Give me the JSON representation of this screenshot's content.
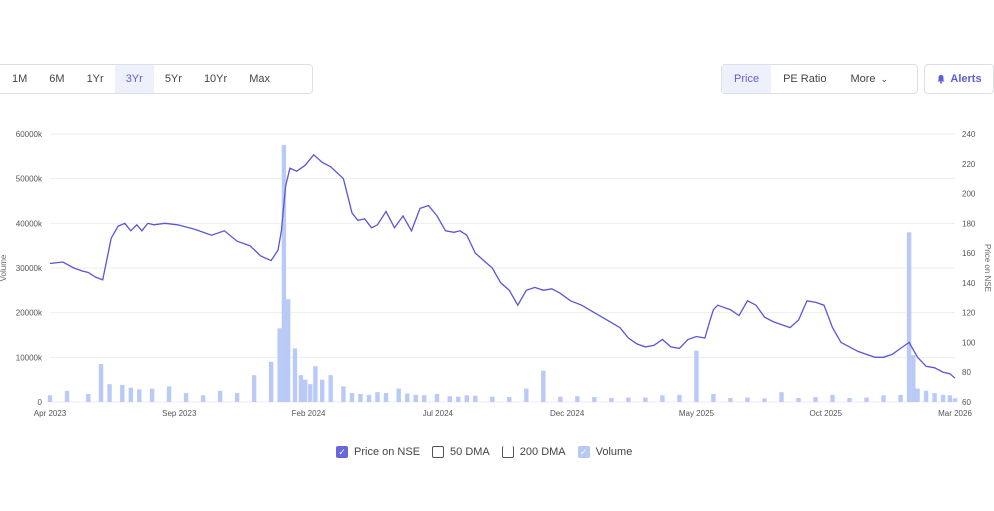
{
  "range_buttons": [
    "1M",
    "6M",
    "1Yr",
    "3Yr",
    "5Yr",
    "10Yr",
    "Max"
  ],
  "active_range": "3Yr",
  "metric_buttons": {
    "price": "Price",
    "pe": "PE Ratio",
    "more": "More"
  },
  "alerts_label": "Alerts",
  "legend": {
    "price": "Price on NSE",
    "dma50": "50 DMA",
    "dma200": "200 DMA",
    "volume": "Volume"
  },
  "colors": {
    "accent": "#5b5fd6",
    "price_line": "#5a55d9",
    "volume_bar": "#b9caf6",
    "grid": "#eeeeee"
  },
  "chart_data": {
    "type": "line",
    "x_tick_labels": [
      "Apr 2023",
      "Sep 2023",
      "Feb 2024",
      "Jul 2024",
      "Dec 2024",
      "May 2025",
      "Oct 2025",
      "Mar 2026"
    ],
    "left_axis": {
      "label": "Volume",
      "ticks": [
        "0",
        "10000k",
        "20000k",
        "30000k",
        "40000k",
        "50000k",
        "60000k"
      ],
      "ylim": [
        0,
        60000
      ]
    },
    "right_axis": {
      "label": "Price on NSE",
      "ticks": [
        "60",
        "80",
        "100",
        "120",
        "140",
        "160",
        "180",
        "200",
        "220",
        "240"
      ],
      "ylim": [
        60,
        240
      ]
    },
    "x_range": [
      0,
      1064
    ],
    "price_series": {
      "name": "Price on NSE",
      "x": [
        0,
        15,
        28,
        38,
        45,
        53,
        62,
        72,
        80,
        88,
        95,
        102,
        108,
        115,
        122,
        135,
        150,
        170,
        190,
        205,
        220,
        235,
        248,
        260,
        268,
        272,
        277,
        282,
        290,
        300,
        310,
        320,
        330,
        345,
        355,
        362,
        370,
        378,
        385,
        395,
        405,
        415,
        425,
        435,
        445,
        455,
        465,
        475,
        482,
        490,
        500,
        510,
        520,
        530,
        540,
        550,
        560,
        570,
        580,
        590,
        600,
        612,
        625,
        640,
        655,
        670,
        680,
        690,
        700,
        710,
        720,
        730,
        740,
        750,
        760,
        770,
        775,
        780,
        785,
        790,
        800,
        810,
        820,
        830,
        840,
        850,
        860,
        870,
        880,
        890,
        900,
        910,
        920,
        930,
        940,
        950,
        960,
        970,
        980,
        990,
        1000,
        1010,
        1020,
        1030,
        1040,
        1050,
        1058,
        1064
      ],
      "values": [
        153,
        154,
        150,
        148,
        147,
        144,
        142,
        170,
        178,
        180,
        175,
        179,
        175,
        180,
        179,
        180,
        179,
        176,
        172,
        175,
        168,
        165,
        158,
        155,
        162,
        175,
        205,
        217,
        215,
        219,
        226,
        221,
        218,
        210,
        187,
        182,
        183,
        177,
        179,
        188,
        177,
        185,
        175,
        190,
        192,
        185,
        175,
        174,
        175,
        172,
        160,
        155,
        150,
        140,
        135,
        125,
        135,
        137,
        135,
        136,
        133,
        128,
        125,
        120,
        115,
        110,
        103,
        99,
        97,
        98,
        102,
        97,
        96,
        102,
        104,
        103,
        113,
        122,
        125,
        124,
        122,
        118,
        128,
        125,
        117,
        114,
        112,
        110,
        115,
        128,
        127,
        125,
        110,
        100,
        97,
        94,
        92,
        90,
        90,
        92,
        96,
        100,
        90,
        84,
        83,
        80,
        79,
        76
      ]
    },
    "volume_series": {
      "name": "Volume",
      "x": [
        0,
        20,
        45,
        60,
        70,
        85,
        95,
        105,
        120,
        140,
        160,
        180,
        200,
        220,
        240,
        260,
        270,
        275,
        280,
        288,
        295,
        300,
        306,
        312,
        320,
        330,
        345,
        355,
        365,
        375,
        385,
        395,
        410,
        420,
        430,
        440,
        455,
        470,
        480,
        490,
        500,
        520,
        540,
        560,
        580,
        600,
        620,
        640,
        660,
        680,
        700,
        720,
        740,
        760,
        780,
        800,
        820,
        840,
        860,
        880,
        900,
        920,
        940,
        960,
        980,
        1000,
        1010,
        1015,
        1020,
        1030,
        1040,
        1050,
        1058,
        1064
      ],
      "values": [
        1500,
        2500,
        1800,
        8500,
        4000,
        3800,
        3200,
        2800,
        3000,
        3500,
        2000,
        1500,
        2500,
        2000,
        6000,
        9000,
        16500,
        57500,
        23000,
        12000,
        6000,
        5000,
        4000,
        8000,
        5000,
        6000,
        3500,
        2000,
        1800,
        1600,
        2200,
        2000,
        3000,
        1900,
        1600,
        1500,
        1800,
        1300,
        1200,
        1500,
        1400,
        1200,
        1100,
        3000,
        7000,
        1200,
        1300,
        1100,
        900,
        1000,
        1000,
        1500,
        1600,
        11500,
        1800,
        900,
        1000,
        800,
        2200,
        900,
        1100,
        1600,
        900,
        1000,
        1500,
        1600,
        38000,
        10500,
        3000,
        2500,
        2000,
        1600,
        1500,
        800
      ]
    }
  }
}
